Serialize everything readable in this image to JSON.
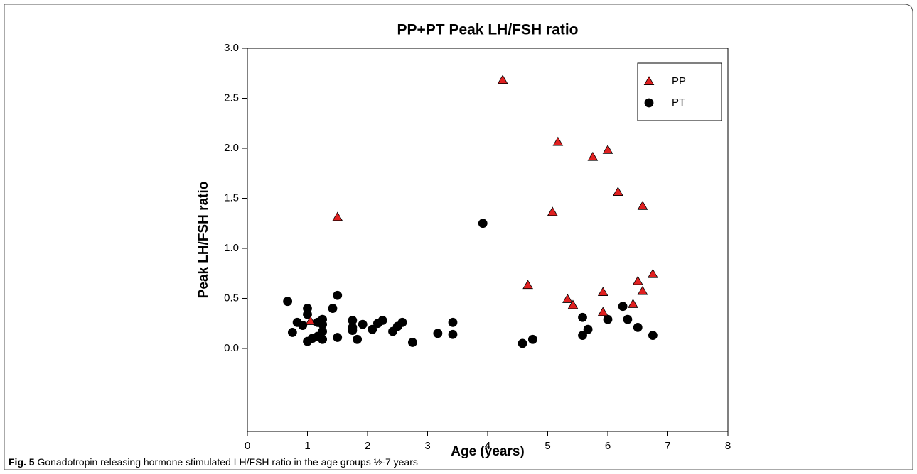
{
  "chart_data": {
    "type": "scatter",
    "title": "PP+PT Peak LH/FSH ratio",
    "xlabel": "Age (years)",
    "ylabel": "Peak LH/FSH ratio",
    "xlim": [
      0,
      8
    ],
    "xticks": [
      0,
      1,
      2,
      3,
      4,
      5,
      6,
      7,
      8
    ],
    "ylim": [
      -0.83,
      3.0
    ],
    "yticks": [
      {
        "value": 0,
        "label": "0.0"
      },
      0.5,
      {
        "value": 1,
        "label": "1.0"
      },
      1.5,
      {
        "value": 2,
        "label": "2.0"
      },
      2.5,
      {
        "value": 3,
        "label": "3.0"
      }
    ],
    "legend": "upper right",
    "series": [
      {
        "name": "PP",
        "color": "#e02020",
        "marker": "triangle",
        "x": [
          1.05,
          1.5,
          4.25,
          4.67,
          5.08,
          5.17,
          5.33,
          5.42,
          5.75,
          5.92,
          5.92,
          6.0,
          6.17,
          6.42,
          6.5,
          6.58,
          6.58,
          6.75
        ],
        "values": [
          0.27,
          1.31,
          2.68,
          0.63,
          1.36,
          2.06,
          0.49,
          0.43,
          1.91,
          0.56,
          0.36,
          1.98,
          1.56,
          0.44,
          0.67,
          0.57,
          1.42,
          0.74
        ]
      },
      {
        "name": "PT",
        "color": "#000000",
        "marker": "circle",
        "x": [
          0.67,
          0.75,
          0.83,
          0.92,
          1.0,
          1.0,
          1.0,
          1.08,
          1.17,
          1.17,
          1.25,
          1.25,
          1.25,
          1.25,
          1.42,
          1.5,
          1.5,
          1.75,
          1.75,
          1.75,
          1.83,
          1.92,
          2.08,
          2.17,
          2.25,
          2.42,
          2.5,
          2.58,
          2.75,
          3.17,
          3.42,
          3.42,
          3.92,
          4.58,
          4.75,
          5.58,
          5.58,
          5.67,
          6.0,
          6.25,
          6.33,
          6.5,
          6.75
        ],
        "values": [
          0.47,
          0.16,
          0.26,
          0.23,
          0.4,
          0.34,
          0.07,
          0.1,
          0.26,
          0.12,
          0.29,
          0.24,
          0.17,
          0.09,
          0.4,
          0.53,
          0.11,
          0.28,
          0.21,
          0.18,
          0.09,
          0.24,
          0.19,
          0.25,
          0.28,
          0.17,
          0.22,
          0.26,
          0.06,
          0.15,
          0.14,
          0.26,
          1.25,
          0.05,
          0.09,
          0.31,
          0.13,
          0.19,
          0.29,
          0.42,
          0.29,
          0.21,
          0.13
        ]
      }
    ]
  },
  "caption": {
    "label": "Fig. 5",
    "text": "Gonadotropin releasing hormone stimulated LH/FSH ratio in the age groups ½-7 years"
  }
}
